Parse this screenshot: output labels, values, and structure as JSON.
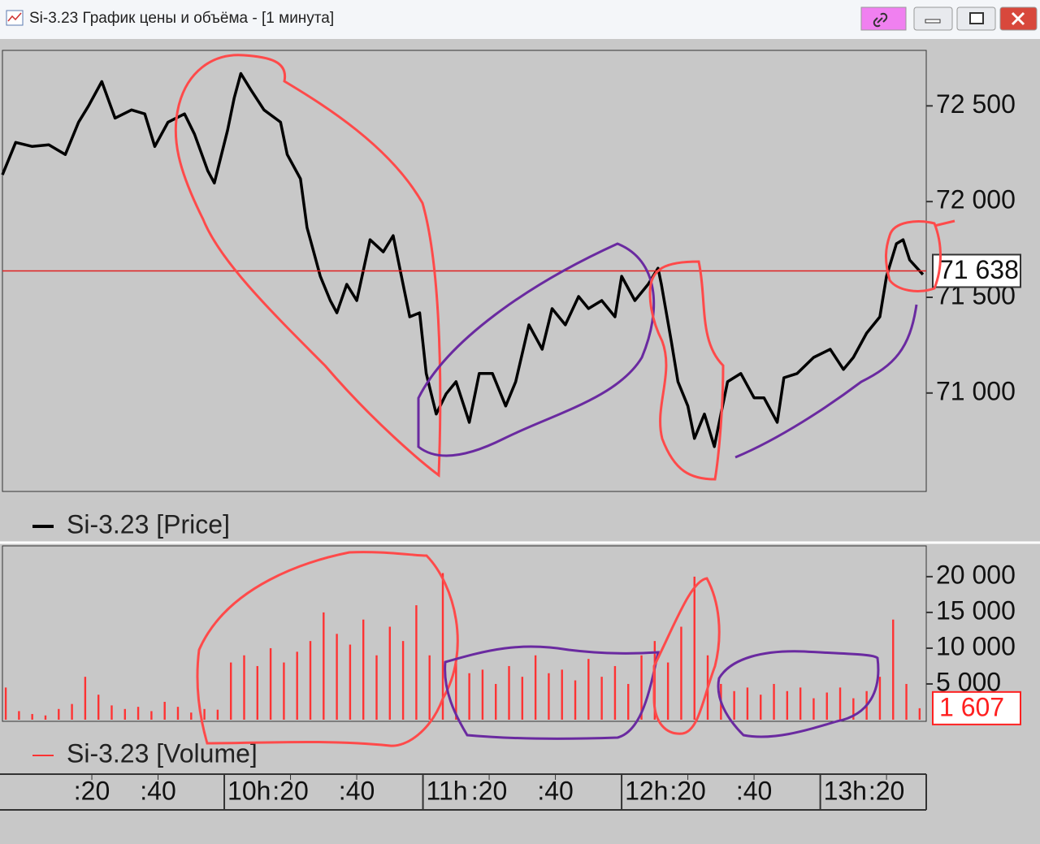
{
  "window": {
    "title": "Si-3.23 График цены и объёма - [1 минута]"
  },
  "chart_data": [
    {
      "type": "line",
      "series": [
        {
          "name": "Si-3.23 [Price]",
          "color": "#000000",
          "x": [
            533,
            537,
            542,
            547,
            552,
            556,
            559,
            563,
            567,
            572,
            576,
            579,
            583,
            588,
            591,
            595,
            597,
            601,
            603,
            605,
            608,
            612,
            617,
            619,
            623,
            625,
            627,
            629,
            632,
            634,
            637,
            640,
            644,
            648,
            651,
            654,
            656,
            659,
            661,
            664,
            667,
            670,
            674,
            677,
            681,
            685,
            688,
            692,
            696,
            699,
            703,
            707,
            710,
            714,
            718,
            720,
            724,
            728,
            731,
            732,
            735,
            737,
            740,
            742,
            745,
            748,
            750,
            752,
            756,
            760,
            763,
            767,
            769,
            773,
            778,
            783,
            787,
            790,
            794,
            798,
            800,
            803,
            805,
            807,
            811
          ],
          "values": [
            72140,
            72309,
            72288,
            72297,
            72246,
            72415,
            72500,
            72627,
            72436,
            72479,
            72458,
            72288,
            72415,
            72458,
            72352,
            72161,
            72097,
            72373,
            72542,
            72669,
            72585,
            72479,
            72415,
            72246,
            72119,
            71864,
            71737,
            71610,
            71483,
            71419,
            71568,
            71483,
            71801,
            71737,
            71822,
            71568,
            71398,
            71419,
            71102,
            70890,
            70996,
            71059,
            70847,
            71102,
            71102,
            70932,
            71059,
            71356,
            71229,
            71441,
            71356,
            71504,
            71441,
            71483,
            71398,
            71610,
            71483,
            71568,
            71652,
            71568,
            71271,
            71059,
            70932,
            70763,
            70890,
            70720,
            70890,
            71059,
            71102,
            70975,
            70975,
            70847,
            71080,
            71102,
            71186,
            71229,
            71123,
            71186,
            71313,
            71398,
            71610,
            71780,
            71801,
            71695,
            71619
          ]
        }
      ],
      "xlim": [
        533,
        812
      ],
      "ylim": [
        70490,
        72790
      ],
      "yticks": [
        {
          "value": 71000,
          "label": "71 000"
        },
        {
          "value": 71500,
          "label": "71 500"
        },
        {
          "value": 72000,
          "label": "72 000"
        },
        {
          "value": 72500,
          "label": "72 500"
        }
      ],
      "last_value": 71638,
      "last_label": "71 638",
      "last_color": "#e02020"
    },
    {
      "type": "bar",
      "series": [
        {
          "name": "Si-3.23 [Volume]",
          "color": "#ff3333",
          "x": [
            534,
            538,
            542,
            546,
            550,
            554,
            558,
            562,
            566,
            570,
            574,
            578,
            582,
            586,
            590,
            594,
            598,
            602,
            606,
            610,
            614,
            618,
            622,
            626,
            630,
            634,
            638,
            642,
            646,
            650,
            654,
            658,
            662,
            666,
            670,
            674,
            678,
            682,
            686,
            690,
            694,
            698,
            702,
            706,
            710,
            714,
            718,
            722,
            726,
            730,
            734,
            738,
            742,
            746,
            750,
            754,
            758,
            762,
            766,
            770,
            774,
            778,
            782,
            786,
            790,
            794,
            798,
            802,
            806,
            810
          ],
          "values": [
            4500,
            1200,
            800,
            600,
            1500,
            2200,
            6000,
            3500,
            2000,
            1500,
            1800,
            1200,
            2500,
            1800,
            1000,
            1500,
            1400,
            8000,
            9000,
            7500,
            10000,
            8000,
            9500,
            11000,
            15000,
            12000,
            10500,
            14000,
            9000,
            13000,
            11000,
            16000,
            9000,
            20500,
            8000,
            6500,
            7000,
            5000,
            7500,
            6000,
            9000,
            6500,
            7000,
            5500,
            8500,
            6000,
            7500,
            5000,
            9000,
            11000,
            8000,
            13000,
            20000,
            9000,
            5000,
            4000,
            4500,
            3500,
            5000,
            4000,
            4500,
            3000,
            3800,
            4500,
            3000,
            4000,
            6000,
            14000,
            5000,
            1607
          ]
        }
      ],
      "xlim": [
        533,
        812
      ],
      "ylim": [
        0,
        24300
      ],
      "yticks": [
        {
          "value": 5000,
          "label": "5 000"
        },
        {
          "value": 10000,
          "label": "10 000"
        },
        {
          "value": 15000,
          "label": "15 000"
        },
        {
          "value": 20000,
          "label": "20 000"
        }
      ],
      "xticks": [
        {
          "value": 560,
          "label": ":20"
        },
        {
          "value": 580,
          "label": ":40"
        },
        {
          "value": 600,
          "label": "10h"
        },
        {
          "value": 620,
          "label": ":20"
        },
        {
          "value": 640,
          "label": ":40"
        },
        {
          "value": 660,
          "label": "11h"
        },
        {
          "value": 680,
          "label": ":20"
        },
        {
          "value": 700,
          "label": ":40"
        },
        {
          "value": 720,
          "label": "12h"
        },
        {
          "value": 740,
          "label": ":20"
        },
        {
          "value": 760,
          "label": ":40"
        },
        {
          "value": 780,
          "label": "13h"
        },
        {
          "value": 800,
          "label": ":20"
        }
      ],
      "last_value": 1607,
      "last_label": "1 607",
      "last_color": "#ff2020"
    }
  ]
}
